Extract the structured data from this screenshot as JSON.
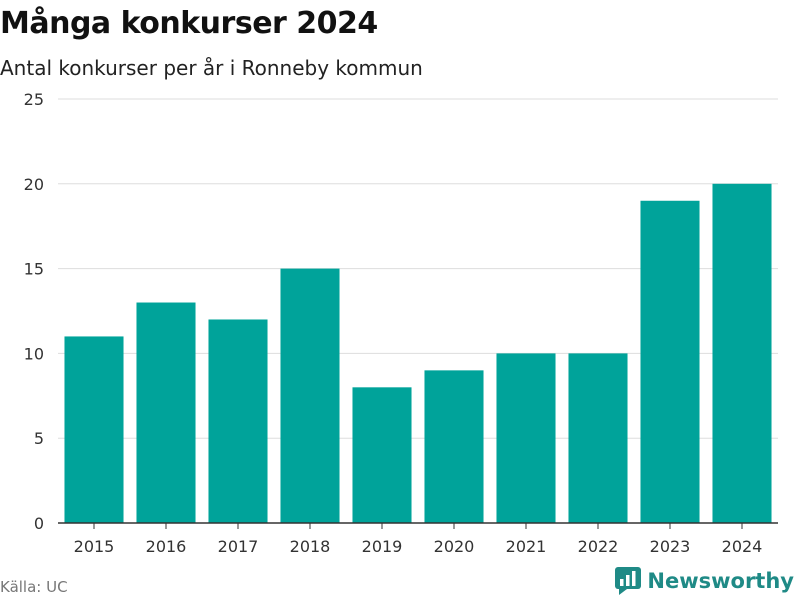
{
  "header": {
    "title": "Många konkurser 2024",
    "subtitle": "Antal konkurser per år i Ronneby kommun"
  },
  "footer": {
    "source": "Källa: UC",
    "brand": "Newsworthy"
  },
  "colors": {
    "bar": "#00a39a",
    "grid": "#dddddd",
    "axis": "#333333",
    "brand": "#1f8a86"
  },
  "chart_data": {
    "type": "bar",
    "title": "Många konkurser 2024",
    "subtitle": "Antal konkurser per år i Ronneby kommun",
    "categories": [
      "2015",
      "2016",
      "2017",
      "2018",
      "2019",
      "2020",
      "2021",
      "2022",
      "2023",
      "2024"
    ],
    "values": [
      11,
      13,
      12,
      15,
      8,
      9,
      10,
      10,
      19,
      20
    ],
    "ylim": [
      0,
      25
    ],
    "yticks": [
      0,
      5,
      10,
      15,
      20,
      25
    ],
    "xlabel": "",
    "ylabel": "",
    "grid": true,
    "legend": "none"
  }
}
